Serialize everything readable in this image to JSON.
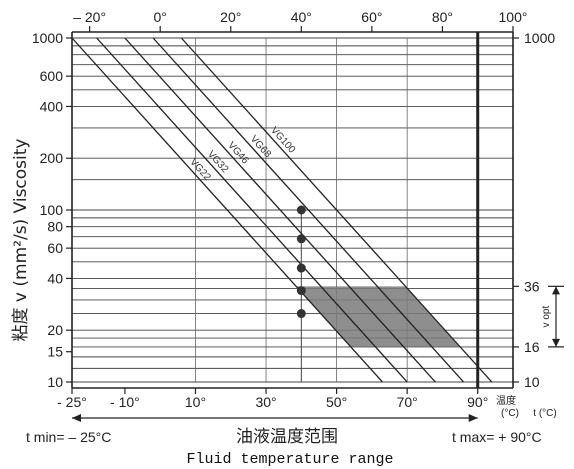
{
  "chart_data": {
    "type": "line",
    "x_axis_top": {
      "ticks": [
        -20,
        0,
        20,
        40,
        60,
        80,
        100
      ],
      "tick_labels": [
        "– 20°",
        "0°",
        "20°",
        "40°",
        "60°",
        "80°",
        "100°"
      ],
      "range": [
        -25,
        100
      ]
    },
    "x_axis_bottom": {
      "ticks": [
        -25,
        -10,
        10,
        30,
        50,
        70,
        90
      ],
      "tick_labels": [
        "- 25°",
        "- 10°",
        "10°",
        "30°",
        "50°",
        "70°",
        "90°"
      ],
      "range": [
        -25,
        100
      ],
      "unit_cn": "温度",
      "unit_label": "(°C)",
      "unit_label_alt": "t (°C)"
    },
    "y_axis": {
      "scale": "log",
      "range": [
        10,
        1000
      ],
      "left_ticks": [
        10,
        15,
        20,
        40,
        60,
        80,
        100,
        200,
        400,
        600,
        1000
      ],
      "right_ticks": [
        10,
        16,
        36,
        1000
      ],
      "label": "粘度 v (mm²/s) Viscosity",
      "v_opt_label": "v opt"
    },
    "series": [
      {
        "name": "VG22",
        "x": [
          -25,
          63
        ],
        "y": [
          1000,
          10
        ]
      },
      {
        "name": "VG32",
        "x": [
          -18,
          70
        ],
        "y": [
          1000,
          10
        ]
      },
      {
        "name": "VG46",
        "x": [
          -10,
          78
        ],
        "y": [
          1000,
          10
        ]
      },
      {
        "name": "VG68",
        "x": [
          -2,
          86
        ],
        "y": [
          1000,
          10
        ]
      },
      {
        "name": "VG100",
        "x": [
          6,
          94
        ],
        "y": [
          1000,
          10
        ]
      }
    ],
    "points": [
      {
        "x": 40,
        "y": 25
      },
      {
        "x": 40,
        "y": 34
      },
      {
        "x": 40,
        "y": 46
      },
      {
        "x": 40,
        "y": 68
      },
      {
        "x": 40,
        "y": 100
      }
    ],
    "optimum_region": {
      "v_low": 16,
      "v_high": 36
    },
    "limits": {
      "t_min": -25,
      "t_max": 90
    },
    "annotations": {
      "t_min_text": "t min= – 25°C",
      "t_max_text": "t max= + 90°C",
      "xlabel_cn": "油液温度范围",
      "xlabel": "Fluid temperature range"
    }
  }
}
